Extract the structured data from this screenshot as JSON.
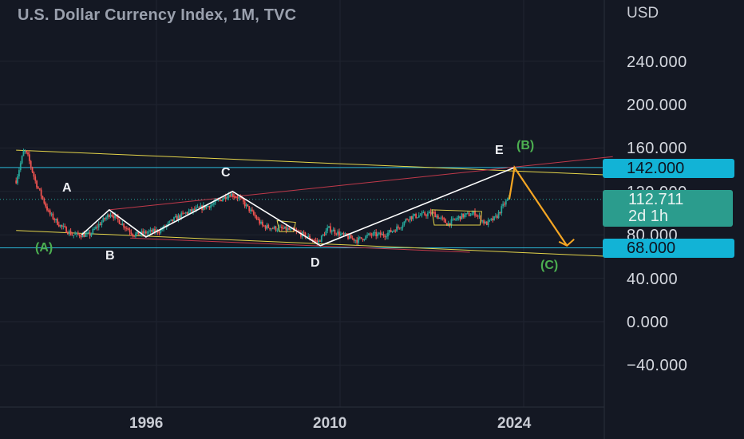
{
  "header": {
    "title": "U.S. Dollar Currency Index, 1M, TVC",
    "currency": "USD"
  },
  "price_axis": {
    "ticks": [
      "240.000",
      "200.000",
      "160.000",
      "120.000",
      "80.000",
      "40.000",
      "0.000",
      "−40.000"
    ]
  },
  "time_axis": {
    "ticks": [
      "1996",
      "2010",
      "2024"
    ]
  },
  "badges": {
    "level_high": "142.000",
    "level_low": "68.000",
    "current_price": "112.711",
    "countdown": "2d 1h"
  },
  "wave_labels": {
    "A": "A",
    "B": "B",
    "C": "C",
    "D": "D",
    "E": "E",
    "pA": "(A)",
    "pB": "(B)",
    "pC": "(C)"
  },
  "colors": {
    "background": "#141823",
    "candle_up": "#26a69a",
    "candle_down": "#ef5350",
    "trendline_yellow": "#e4d44a",
    "trendline_red": "#c0394a",
    "level_line": "#2ab8d8",
    "wave_white": "#ffffff",
    "projection_orange": "#f5a623",
    "label_green": "#4caf50"
  },
  "chart_data": {
    "type": "line",
    "title": "U.S. Dollar Currency Index, 1M, TVC",
    "xlabel": "",
    "ylabel": "USD",
    "x_ticks": [
      1996,
      2010,
      2024
    ],
    "y_ticks": [
      -40,
      0,
      40,
      80,
      120,
      160,
      200,
      240
    ],
    "xlim": [
      1985.3,
      2030.8
    ],
    "ylim": [
      -40,
      240
    ],
    "series": [
      {
        "values": [
          [
            1985.3,
            130
          ],
          [
            1985.9,
            158
          ],
          [
            1986.2,
            152
          ],
          [
            1986.8,
            128
          ],
          [
            1987.8,
            100
          ],
          [
            1988.7,
            88
          ],
          [
            1989.6,
            80
          ],
          [
            1990.9,
            80
          ],
          [
            1991.5,
            88
          ],
          [
            1992.5,
            100
          ],
          [
            1993.2,
            92
          ],
          [
            1994.3,
            80
          ],
          [
            1995.2,
            82
          ],
          [
            1996.3,
            84
          ],
          [
            1997.3,
            94
          ],
          [
            1998.2,
            100
          ],
          [
            1999.2,
            104
          ],
          [
            2000.3,
            108
          ],
          [
            2001.6,
            118
          ],
          [
            2002.3,
            114
          ],
          [
            2003.1,
            103
          ],
          [
            2004.1,
            88
          ],
          [
            2005.0,
            86
          ],
          [
            2006.0,
            85
          ],
          [
            2007.2,
            80
          ],
          [
            2008.3,
            73
          ],
          [
            2009.1,
            86
          ],
          [
            2010.1,
            80
          ],
          [
            2011.3,
            75
          ],
          [
            2012.3,
            80
          ],
          [
            2013.4,
            80
          ],
          [
            2014.6,
            88
          ],
          [
            2015.2,
            96
          ],
          [
            2016.1,
            98
          ],
          [
            2017.1,
            100
          ],
          [
            2018.2,
            90
          ],
          [
            2019.2,
            97
          ],
          [
            2020.3,
            100
          ],
          [
            2021.1,
            90
          ],
          [
            2021.9,
            96
          ],
          [
            2022.6,
            110
          ],
          [
            2022.9,
            112.7
          ]
        ]
      }
    ],
    "wave_points": [
      {
        "label": "(A)",
        "x": 1990.3,
        "y": 80
      },
      {
        "label": "A",
        "x": 1992.4,
        "y": 103
      },
      {
        "label": "B",
        "x": 1995.2,
        "y": 78
      },
      {
        "label": "C",
        "x": 2001.8,
        "y": 120
      },
      {
        "label": "D",
        "x": 2008.5,
        "y": 70
      },
      {
        "label": "E",
        "x": 2023.3,
        "y": 142
      }
    ],
    "projection": [
      {
        "label": "(B)",
        "x": 2023.3,
        "y": 142
      },
      {
        "label": "(C)",
        "x": 2027.3,
        "y": 70
      }
    ],
    "levels": [
      142,
      68
    ],
    "current_price": 112.711,
    "grid": true,
    "legend": "none"
  }
}
